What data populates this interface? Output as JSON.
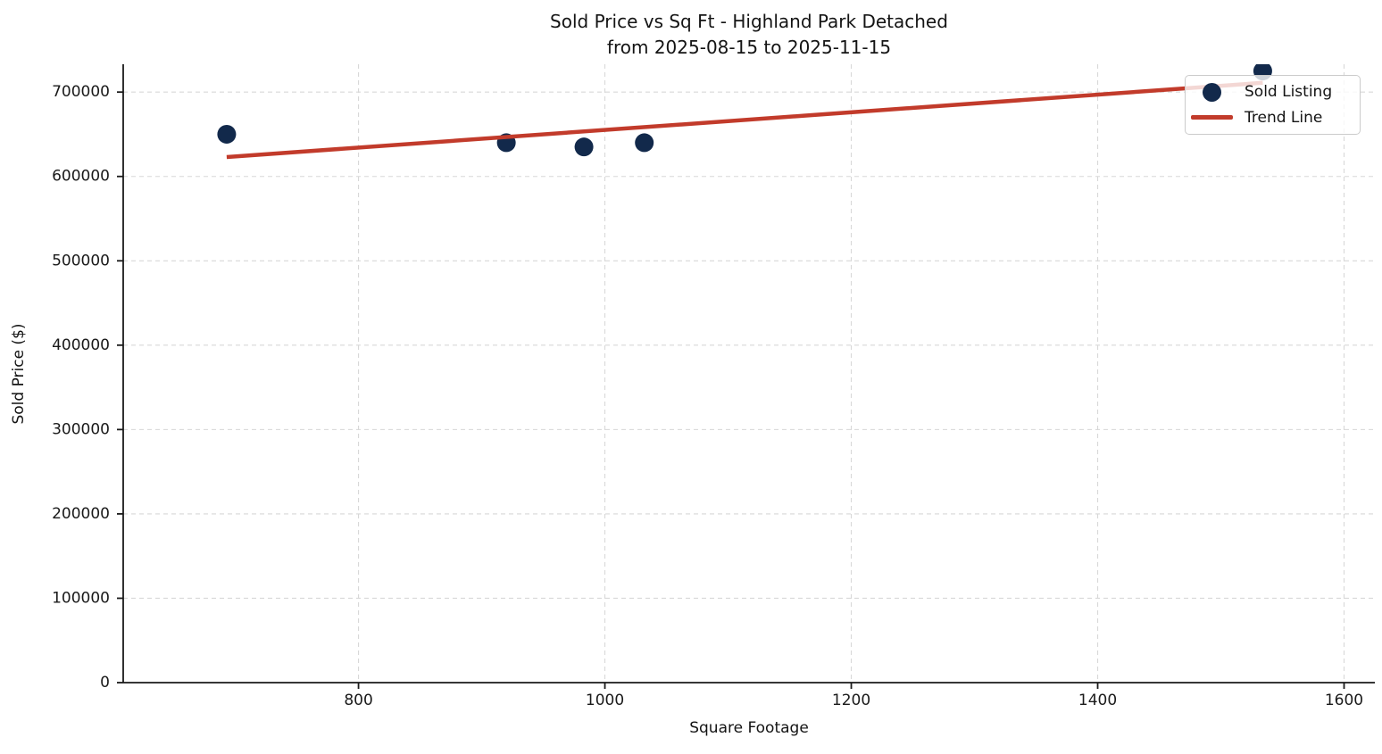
{
  "chart_data": {
    "type": "scatter",
    "title": "Sold Price vs Sq Ft - Highland Park Detached",
    "subtitle": "from 2025-08-15 to 2025-11-15",
    "xlabel": "Square Footage",
    "ylabel": "Sold Price ($)",
    "xlim": [
      609,
      1625
    ],
    "ylim": [
      0,
      733000
    ],
    "x_ticks": [
      800,
      1000,
      1200,
      1400,
      1600
    ],
    "y_ticks": [
      0,
      100000,
      200000,
      300000,
      400000,
      500000,
      600000,
      700000
    ],
    "grid": true,
    "legend_position": "upper right",
    "series": [
      {
        "name": "Sold Listing",
        "kind": "scatter",
        "color": "#12294B",
        "points": [
          [
            693,
            650000
          ],
          [
            920,
            640000
          ],
          [
            983,
            635000
          ],
          [
            1032,
            640000
          ],
          [
            1534,
            725000
          ]
        ]
      },
      {
        "name": "Trend Line",
        "kind": "line",
        "color": "#C23B2B",
        "points": [
          [
            693,
            623000
          ],
          [
            1534,
            711000
          ]
        ]
      }
    ]
  }
}
